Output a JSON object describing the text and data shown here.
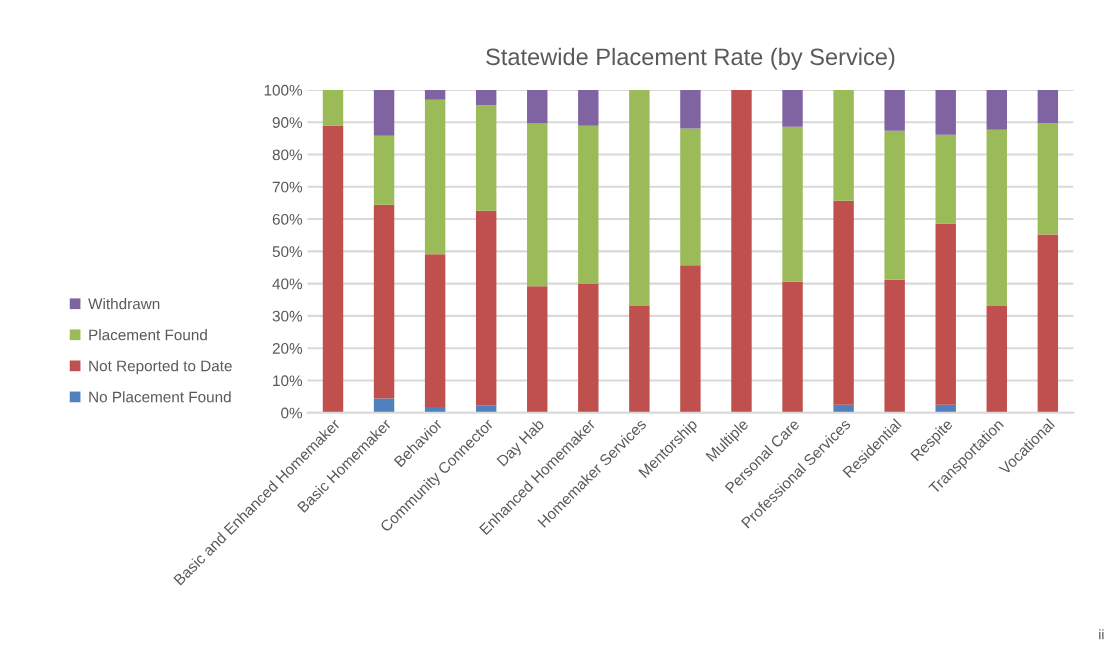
{
  "chart_data": {
    "type": "bar",
    "stacked": true,
    "title": "Statewide Placement Rate (by Service)",
    "categories": [
      "Basic and Enhanced Homemaker",
      "Basic Homemaker",
      "Behavior",
      "Community Connector",
      "Day Hab",
      "Enhanced Homemaker",
      "Homemaker Services",
      "Mentorship",
      "Multiple",
      "Personal Care",
      "Professional Services",
      "Residential",
      "Respite",
      "Transportation",
      "Vocational"
    ],
    "series": [
      {
        "name": "No Placement Found",
        "color": "#4f81bd",
        "values": [
          0,
          4.4,
          1.8,
          2.3,
          0,
          0,
          0,
          0,
          0,
          0,
          2.5,
          0,
          2.5,
          0,
          0
        ]
      },
      {
        "name": "Not Reported to Date",
        "color": "#c0504d",
        "values": [
          89,
          60,
          47.3,
          60.3,
          39.2,
          39.9,
          33.1,
          45.7,
          100,
          40.6,
          63.2,
          41.2,
          56.1,
          33.1,
          55.2
        ]
      },
      {
        "name": "Placement Found",
        "color": "#9bbb59",
        "values": [
          11,
          21.4,
          47.9,
          32.7,
          50.4,
          49,
          66.9,
          42.4,
          0,
          48,
          34.3,
          46.2,
          27.5,
          54.6,
          34.6
        ]
      },
      {
        "name": "Withdrawn",
        "color": "#8064a2",
        "values": [
          0,
          14.2,
          3,
          4.7,
          10.4,
          11.1,
          0,
          11.9,
          0,
          11.4,
          0,
          12.6,
          13.9,
          12.3,
          10.2
        ]
      }
    ],
    "ylim": [
      0,
      100
    ],
    "yticks": [
      {
        "value": 0,
        "label": "0%"
      },
      {
        "value": 10,
        "label": "10%"
      },
      {
        "value": 20,
        "label": "20%"
      },
      {
        "value": 30,
        "label": "30%"
      },
      {
        "value": 40,
        "label": "40%"
      },
      {
        "value": 50,
        "label": "50%"
      },
      {
        "value": 60,
        "label": "60%"
      },
      {
        "value": 70,
        "label": "70%"
      },
      {
        "value": 80,
        "label": "80%"
      },
      {
        "value": 90,
        "label": "90%"
      },
      {
        "value": 100,
        "label": "100%"
      }
    ],
    "grid": "y",
    "legend": "left",
    "annotations": [
      "ii"
    ]
  }
}
